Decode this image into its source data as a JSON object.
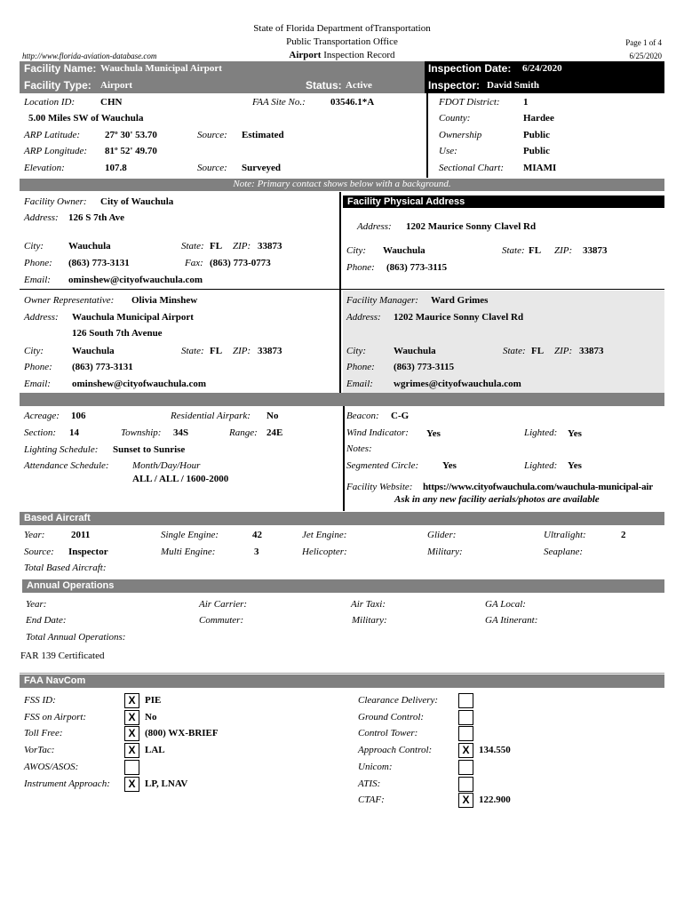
{
  "header": {
    "line1": "State of Florida Department ofTransportation",
    "line2": "Public Transportation Office",
    "record_bold": "Airport",
    "record": "Inspection Record",
    "url": "http://www.florida-aviation-database.com",
    "page": "Page 1 of 4",
    "date": "6/25/2020"
  },
  "facility": {
    "name_label": "Facility Name:",
    "name": "Wauchula Municipal Airport",
    "type_label": "Facility Type:",
    "type": "Airport",
    "status_label": "Status:",
    "status": "Active",
    "insp_date_label": "Inspection Date:",
    "insp_date": "6/24/2020",
    "inspector_label": "Inspector:",
    "inspector": "David Smith"
  },
  "location": {
    "id_label": "Location ID:",
    "id": "CHN",
    "site_label": "FAA Site No.:",
    "site": "03546.1*A",
    "distance": "5.00 Miles SW of Wauchula",
    "lat_label": "ARP Latitude:",
    "lat": "27º 30' 53.70",
    "lat_src_label": "Source:",
    "lat_src": "Estimated",
    "lon_label": "ARP Longitude:",
    "lon": "81º 52' 49.70",
    "elev_label": "Elevation:",
    "elev": "107.8",
    "elev_src_label": "Source:",
    "elev_src": "Surveyed",
    "district_label": "FDOT District:",
    "district": "1",
    "county_label": "County:",
    "county": "Hardee",
    "own_label": "Ownership",
    "own": "Public",
    "use_label": "Use:",
    "use": "Public",
    "chart_label": "Sectional Chart:",
    "chart": "MIAMI"
  },
  "note": "Note: Primary contact shows below with a background.",
  "owner": {
    "label": "Facility Owner:",
    "name": "City of Wauchula",
    "addr_label": "Address:",
    "addr": "126 S 7th Ave",
    "city_label": "City:",
    "city": "Wauchula",
    "state_label": "State:",
    "state": "FL",
    "zip_label": "ZIP:",
    "zip": "33873",
    "phone_label": "Phone:",
    "phone": "(863) 773-3131",
    "fax_label": "Fax:",
    "fax": "(863) 773-0773",
    "email_label": "Email:",
    "email": "ominshew@cityofwauchula.com"
  },
  "physical": {
    "title": "Facility Physical Address",
    "addr_label": "Address:",
    "addr": "1202 Maurice Sonny Clavel Rd",
    "city_label": "City:",
    "city": "Wauchula",
    "state_label": "State:",
    "state": "FL",
    "zip_label": "ZIP:",
    "zip": "33873",
    "phone_label": "Phone:",
    "phone": "(863) 773-3115"
  },
  "rep": {
    "label": "Owner Representative:",
    "name": "Olivia Minshew",
    "addr_label": "Address:",
    "addr1": "Wauchula Municipal Airport",
    "addr2": "126 South 7th Avenue",
    "city_label": "City:",
    "city": "Wauchula",
    "state_label": "State:",
    "state": "FL",
    "zip_label": "ZIP:",
    "zip": "33873",
    "phone_label": "Phone:",
    "phone": "(863) 773-3131",
    "email_label": "Email:",
    "email": "ominshew@cityofwauchula.com"
  },
  "manager": {
    "label": "Facility Manager:",
    "name": "Ward Grimes",
    "addr_label": "Address:",
    "addr": "1202 Maurice Sonny Clavel Rd",
    "city_label": "City:",
    "city": "Wauchula",
    "state_label": "State:",
    "state": "FL",
    "zip_label": "ZIP:",
    "zip": "33873",
    "phone_label": "Phone:",
    "phone": "(863) 773-3115",
    "email_label": "Email:",
    "email": "wgrimes@cityofwauchula.com"
  },
  "site": {
    "acreage_label": "Acreage:",
    "acreage": "106",
    "res_label": "Residential Airpark:",
    "res": "No",
    "section_label": "Section:",
    "section": "14",
    "township_label": "Township:",
    "township": "34S",
    "range_label": "Range:",
    "range": "24E",
    "lighting_label": "Lighting Schedule:",
    "lighting": "Sunset to Sunrise",
    "attend_label": "Attendance Schedule:",
    "attend_hdr": "Month/Day/Hour",
    "attend": "ALL / ALL / 1600-2000",
    "beacon_label": "Beacon:",
    "beacon": "C-G",
    "wind_label": "Wind Indicator:",
    "wind": "Yes",
    "wind_lit_label": "Lighted:",
    "wind_lit": "Yes",
    "notes_label": "Notes:",
    "seg_label": "Segmented Circle:",
    "seg": "Yes",
    "seg_lit_label": "Lighted:",
    "seg_lit": "Yes",
    "web_label": "Facility Website:",
    "web": "https://www.cityofwauchula.com/wauchula-municipal-air",
    "ask": "Ask in any new facility aerials/photos are available"
  },
  "based": {
    "title": "Based Aircraft",
    "year_label": "Year:",
    "year": "2011",
    "source_label": "Source:",
    "source": "Inspector",
    "single_label": "Single Engine:",
    "single": "42",
    "multi_label": "Multi Engine:",
    "multi": "3",
    "jet_label": "Jet Engine:",
    "heli_label": "Helicopter:",
    "glider_label": "Glider:",
    "military_label": "Military:",
    "ultra_label": "Ultralight:",
    "ultra": "2",
    "sea_label": "Seaplane:",
    "total_label": "Total Based Aircraft:"
  },
  "ops": {
    "title": "Annual Operations",
    "year_label": "Year:",
    "end_label": "End Date:",
    "total_label": "Total Annual Operations:",
    "carrier_label": "Air Carrier:",
    "commuter_label": "Commuter:",
    "taxi_label": "Air Taxi:",
    "military_label": "Military:",
    "local_label": "GA Local:",
    "itin_label": "GA Itinerant:",
    "far": "FAR 139 Certificated"
  },
  "navcom": {
    "title": "FAA NavCom",
    "left": [
      {
        "label": "FSS ID:",
        "mark": "X",
        "value": "PIE"
      },
      {
        "label": "FSS on Airport:",
        "mark": "X",
        "value": "No"
      },
      {
        "label": "Toll Free:",
        "mark": "X",
        "value": "(800) WX-BRIEF"
      },
      {
        "label": "VorTac:",
        "mark": "X",
        "value": "LAL"
      },
      {
        "label": "AWOS/ASOS:",
        "mark": "",
        "value": ""
      },
      {
        "label": "Instrument Approach:",
        "mark": "X",
        "value": "LP, LNAV"
      }
    ],
    "right": [
      {
        "label": "Clearance Delivery:",
        "mark": "",
        "value": ""
      },
      {
        "label": "Ground Control:",
        "mark": "",
        "value": ""
      },
      {
        "label": "Control Tower:",
        "mark": "",
        "value": ""
      },
      {
        "label": "Approach Control:",
        "mark": "X",
        "value": "134.550"
      },
      {
        "label": "Unicom:",
        "mark": "",
        "value": ""
      },
      {
        "label": "ATIS:",
        "mark": "",
        "value": ""
      },
      {
        "label": "CTAF:",
        "mark": "X",
        "value": "122.900"
      }
    ]
  }
}
